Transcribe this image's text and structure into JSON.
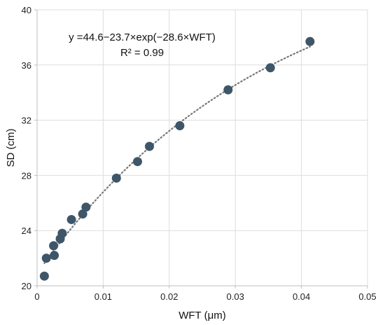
{
  "chart_data": {
    "type": "scatter",
    "xlabel": "WFT (μm)",
    "ylabel": "SD (cm)",
    "xlim": [
      0,
      0.05
    ],
    "ylim": [
      20,
      40
    ],
    "x_ticks": [
      "0",
      "0.01",
      "0.02",
      "0.03",
      "0.04",
      "0.05"
    ],
    "y_ticks": [
      "20",
      "24",
      "28",
      "32",
      "36",
      "40"
    ],
    "grid": true,
    "annotations": {
      "equation": "y =44.6−23.7×exp(−28.6×WFT)",
      "r_squared": "R² = 0.99"
    },
    "fit": {
      "a": 44.6,
      "b": 23.7,
      "c": 28.6,
      "style": "dotted"
    },
    "series": [
      {
        "x": [
          0.0011,
          0.0014,
          0.0025,
          0.0026,
          0.0035,
          0.0038,
          0.0052,
          0.0069,
          0.0074,
          0.012,
          0.0152,
          0.017,
          0.0216,
          0.0289,
          0.0353,
          0.0413
        ],
        "y": [
          20.7,
          22.0,
          22.9,
          22.2,
          23.4,
          23.8,
          24.8,
          25.2,
          25.7,
          27.8,
          29.0,
          30.1,
          31.6,
          34.2,
          35.8,
          37.7
        ]
      }
    ],
    "colors": {
      "marker": "#3e5668",
      "fit": "#777777",
      "grid": "#dddddd",
      "axis": "#bfbfbf"
    }
  }
}
